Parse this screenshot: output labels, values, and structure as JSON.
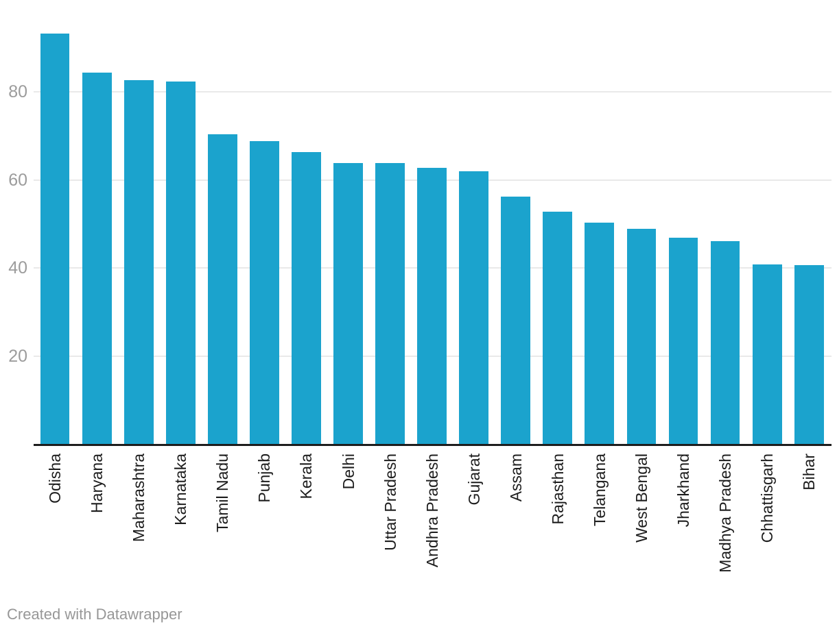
{
  "chart_data": {
    "type": "bar",
    "categories": [
      "Odisha",
      "Haryana",
      "Maharashtra",
      "Karnataka",
      "Tamil Nadu",
      "Punjab",
      "Kerala",
      "Delhi",
      "Uttar Pradesh",
      "Andhra Pradesh",
      "Gujarat",
      "Assam",
      "Rajasthan",
      "Telangana",
      "West Bengal",
      "Jharkhand",
      "Madhya Pradesh",
      "Chhattisgarh",
      "Bihar"
    ],
    "values": [
      93.3,
      84.4,
      82.6,
      82.3,
      70.3,
      68.8,
      66.3,
      63.8,
      63.8,
      62.7,
      62.0,
      56.2,
      52.7,
      50.3,
      48.9,
      46.8,
      46.0,
      40.8,
      40.6
    ],
    "title": "",
    "xlabel": "",
    "ylabel": "",
    "ylim": [
      0,
      95
    ],
    "yticks": [
      20,
      40,
      60,
      80
    ],
    "ytick_labels": [
      "20",
      "40",
      "60",
      "80"
    ],
    "grid": true,
    "legend": false,
    "sort_order": "descending"
  },
  "colors": {
    "background": "#ffffff",
    "bar": "#1ba3cd",
    "axis_line": "#1d1d1d",
    "grid_line": "#e9e9e9",
    "y_tick_label": "#9c9c9c",
    "x_tick_label": "#1d1d1d",
    "footer_text": "#979797"
  },
  "footer": {
    "credit": "Created with Datawrapper"
  }
}
